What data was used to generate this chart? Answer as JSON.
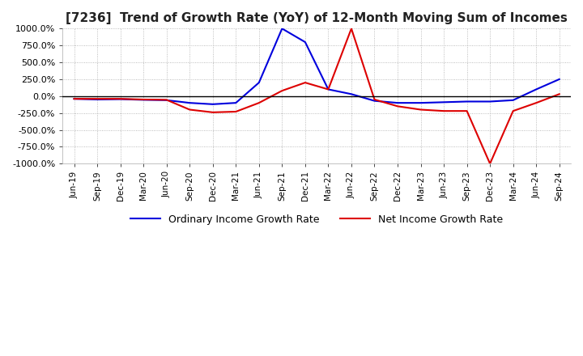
{
  "title": "[7236]  Trend of Growth Rate (YoY) of 12-Month Moving Sum of Incomes",
  "title_fontsize": 11,
  "ylim": [
    -1000,
    1000
  ],
  "yticks": [
    -1000,
    -750,
    -500,
    -250,
    0,
    250,
    500,
    750,
    1000
  ],
  "ytick_labels": [
    "-1000.0%",
    "-750.0%",
    "-500.0%",
    "-250.0%",
    "0.0%",
    "250.0%",
    "500.0%",
    "750.0%",
    "1000.0%"
  ],
  "background_color": "#ffffff",
  "plot_bg_color": "#ffffff",
  "grid_color": "#aaaaaa",
  "line1_color": "#0000dd",
  "line2_color": "#dd0000",
  "line1_label": "Ordinary Income Growth Rate",
  "line2_label": "Net Income Growth Rate",
  "x_labels": [
    "Jun-19",
    "Sep-19",
    "Dec-19",
    "Mar-20",
    "Jun-20",
    "Sep-20",
    "Dec-20",
    "Mar-21",
    "Jun-21",
    "Sep-21",
    "Dec-21",
    "Mar-22",
    "Jun-22",
    "Sep-22",
    "Dec-22",
    "Mar-23",
    "Jun-23",
    "Sep-23",
    "Dec-23",
    "Mar-24",
    "Jun-24",
    "Sep-24"
  ],
  "ordinary_income": [
    -40,
    -50,
    -45,
    -55,
    -60,
    -100,
    -120,
    -100,
    200,
    1000,
    800,
    100,
    30,
    -70,
    -100,
    -100,
    -90,
    -80,
    -80,
    -60,
    100,
    250
  ],
  "net_income": [
    -40,
    -40,
    -40,
    -50,
    -55,
    -200,
    -240,
    -230,
    -100,
    80,
    200,
    100,
    1000,
    -50,
    -150,
    -200,
    -220,
    -220,
    -1000,
    -220,
    -100,
    30
  ]
}
